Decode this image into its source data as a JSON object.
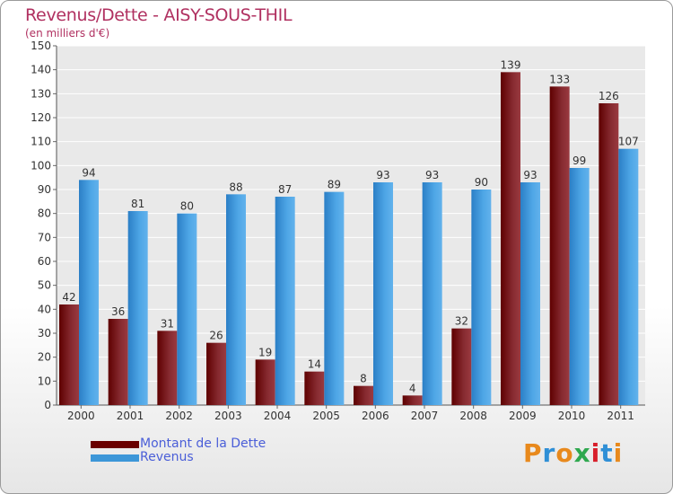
{
  "header": {
    "title": "Revenus/Dette - AISY-SOUS-THIL",
    "subtitle": "(en milliers d'€)"
  },
  "chart_data": {
    "type": "bar",
    "categories": [
      "2000",
      "2001",
      "2002",
      "2003",
      "2004",
      "2005",
      "2006",
      "2007",
      "2008",
      "2009",
      "2010",
      "2011"
    ],
    "series": [
      {
        "name": "Montant de la Dette",
        "values": [
          42,
          36,
          31,
          26,
          19,
          14,
          8,
          4,
          32,
          139,
          133,
          126
        ],
        "color": "#7a0a14"
      },
      {
        "name": "Revenus",
        "values": [
          94,
          81,
          80,
          88,
          87,
          89,
          93,
          93,
          90,
          93,
          99,
          107
        ],
        "color": "#3c96d8"
      }
    ],
    "ylim": [
      0,
      150
    ],
    "yticks": [
      0,
      10,
      20,
      30,
      40,
      50,
      60,
      70,
      80,
      90,
      100,
      110,
      120,
      130,
      140,
      150
    ],
    "grid": true,
    "legend_position": "bottom-left"
  },
  "logo": {
    "letters": [
      "P",
      "r",
      "o",
      "x",
      "i",
      "t",
      "i"
    ],
    "colors": [
      "#e8891c",
      "#2f8fd6",
      "#e8891c",
      "#2fa84f",
      "#d8202c",
      "#2f8fd6",
      "#e8891c"
    ]
  }
}
